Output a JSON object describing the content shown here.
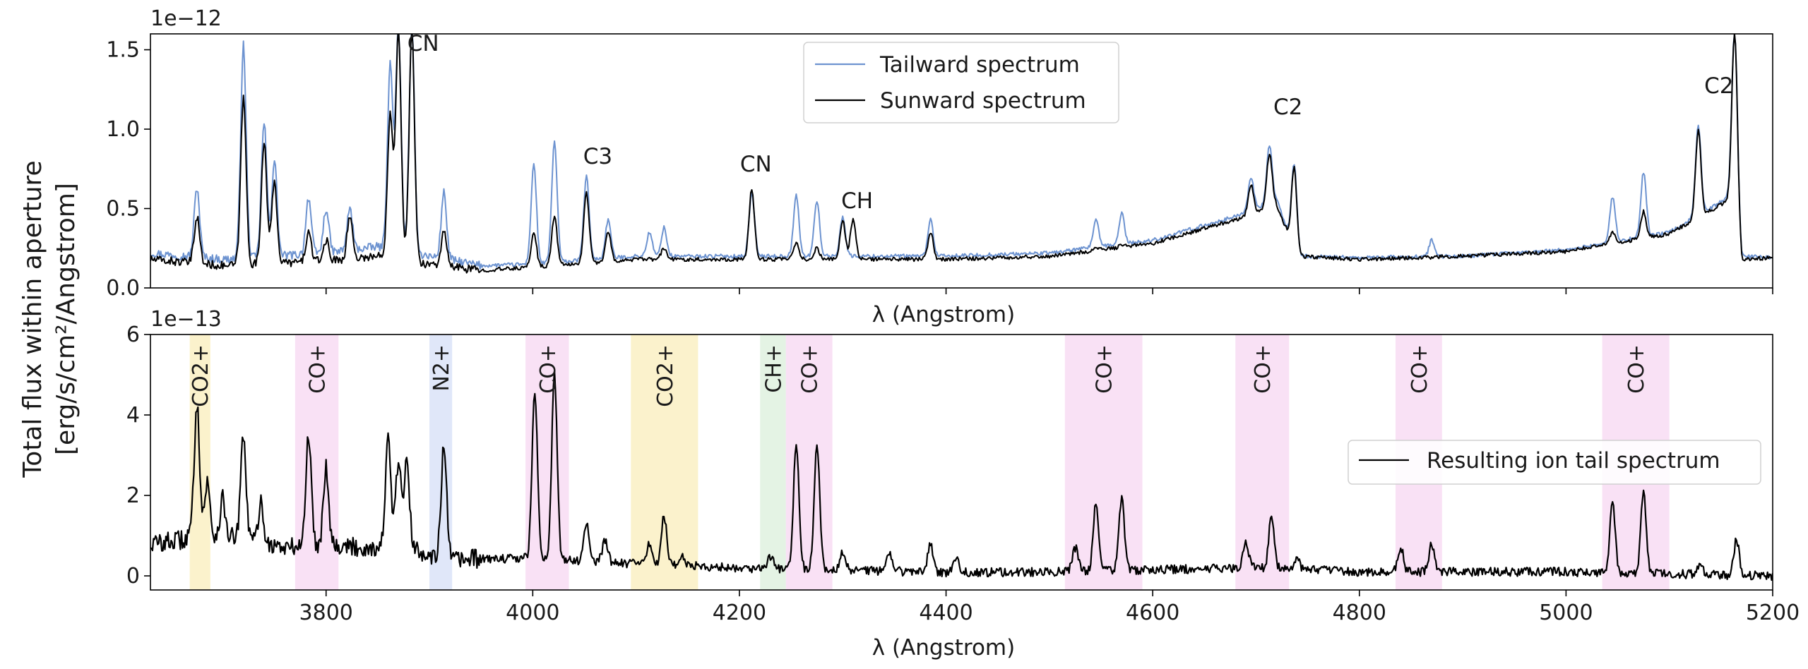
{
  "figure": {
    "ylabel_line1": "Total flux within aperture",
    "ylabel_line2": "[erg/s/cm²/Angstrom]"
  },
  "chart_data": [
    {
      "type": "line",
      "panel": "top",
      "offset_text": "1e−12",
      "xlabel": "λ (Angstrom)",
      "xlim": [
        3630,
        5200
      ],
      "ylim": [
        0,
        1.6
      ],
      "yticks": [
        0.0,
        0.5,
        1.0,
        1.5
      ],
      "ytick_labels": [
        "0.0",
        "0.5",
        "1.0",
        "1.5"
      ],
      "xticks": [
        3800,
        4000,
        4200,
        4400,
        4600,
        4800,
        5000,
        5200
      ],
      "xtick_labels": [],
      "grid": false,
      "legend_position": "upper-center",
      "series": [
        {
          "name": "Tailward spectrum",
          "color": "#6d93d0",
          "baseline": [
            [
              3630,
              0.22
            ],
            [
              3700,
              0.18
            ],
            [
              3800,
              0.22
            ],
            [
              3850,
              0.26
            ],
            [
              3900,
              0.2
            ],
            [
              3950,
              0.14
            ],
            [
              4000,
              0.15
            ],
            [
              4100,
              0.2
            ],
            [
              4200,
              0.2
            ],
            [
              4300,
              0.2
            ],
            [
              4400,
              0.2
            ],
            [
              4500,
              0.22
            ],
            [
              4600,
              0.3
            ],
            [
              4680,
              0.45
            ],
            [
              4720,
              0.55
            ],
            [
              4740,
              0.2
            ],
            [
              4800,
              0.19
            ],
            [
              4900,
              0.2
            ],
            [
              5000,
              0.24
            ],
            [
              5100,
              0.35
            ],
            [
              5165,
              0.6
            ],
            [
              5170,
              0.2
            ],
            [
              5200,
              0.19
            ]
          ],
          "peaks": [
            [
              3675,
              0.63
            ],
            [
              3720,
              1.53
            ],
            [
              3740,
              1.04
            ],
            [
              3750,
              0.8
            ],
            [
              3783,
              0.57
            ],
            [
              3800,
              0.5
            ],
            [
              3823,
              0.5
            ],
            [
              3862,
              1.4
            ],
            [
              3870,
              1.62
            ],
            [
              3883,
              1.62
            ],
            [
              3914,
              0.6
            ],
            [
              4001,
              0.78
            ],
            [
              4021,
              0.92
            ],
            [
              4052,
              0.7
            ],
            [
              4073,
              0.43
            ],
            [
              4113,
              0.35
            ],
            [
              4127,
              0.38
            ],
            [
              4212,
              0.6
            ],
            [
              4255,
              0.58
            ],
            [
              4275,
              0.55
            ],
            [
              4300,
              0.45
            ],
            [
              4385,
              0.43
            ],
            [
              4545,
              0.43
            ],
            [
              4570,
              0.47
            ],
            [
              4695,
              0.7
            ],
            [
              4713,
              0.9
            ],
            [
              4737,
              0.78
            ],
            [
              4870,
              0.3
            ],
            [
              5045,
              0.57
            ],
            [
              5075,
              0.73
            ],
            [
              5128,
              1.03
            ],
            [
              5163,
              1.6
            ]
          ],
          "note": "upper panel flux in units of 1e-12"
        },
        {
          "name": "Sunward spectrum",
          "color": "#000000",
          "baseline": [
            [
              3630,
              0.18
            ],
            [
              3700,
              0.14
            ],
            [
              3800,
              0.17
            ],
            [
              3850,
              0.2
            ],
            [
              3900,
              0.15
            ],
            [
              3950,
              0.11
            ],
            [
              4000,
              0.13
            ],
            [
              4100,
              0.18
            ],
            [
              4200,
              0.18
            ],
            [
              4300,
              0.18
            ],
            [
              4400,
              0.18
            ],
            [
              4500,
              0.2
            ],
            [
              4600,
              0.28
            ],
            [
              4680,
              0.43
            ],
            [
              4720,
              0.52
            ],
            [
              4740,
              0.2
            ],
            [
              4800,
              0.18
            ],
            [
              4900,
              0.2
            ],
            [
              5000,
              0.23
            ],
            [
              5100,
              0.34
            ],
            [
              5165,
              0.58
            ],
            [
              5170,
              0.18
            ],
            [
              5200,
              0.19
            ]
          ],
          "peaks": [
            [
              3675,
              0.45
            ],
            [
              3720,
              1.2
            ],
            [
              3740,
              0.93
            ],
            [
              3750,
              0.66
            ],
            [
              3783,
              0.35
            ],
            [
              3800,
              0.3
            ],
            [
              3823,
              0.45
            ],
            [
              3862,
              1.1
            ],
            [
              3870,
              1.62
            ],
            [
              3883,
              1.62
            ],
            [
              3914,
              0.35
            ],
            [
              4001,
              0.35
            ],
            [
              4021,
              0.45
            ],
            [
              4052,
              0.6
            ],
            [
              4073,
              0.35
            ],
            [
              4127,
              0.25
            ],
            [
              4212,
              0.62
            ],
            [
              4255,
              0.28
            ],
            [
              4275,
              0.25
            ],
            [
              4300,
              0.42
            ],
            [
              4310,
              0.43
            ],
            [
              4385,
              0.35
            ],
            [
              4545,
              0.25
            ],
            [
              4570,
              0.27
            ],
            [
              4695,
              0.65
            ],
            [
              4713,
              0.85
            ],
            [
              4737,
              0.76
            ],
            [
              5045,
              0.35
            ],
            [
              5075,
              0.48
            ],
            [
              5128,
              1.0
            ],
            [
              5163,
              1.6
            ]
          ]
        }
      ],
      "annotations": [
        {
          "text": "CN",
          "x": 3883
        },
        {
          "text": "C3",
          "x": 4052
        },
        {
          "text": "CN",
          "x": 4205
        },
        {
          "text": "CH",
          "x": 4303
        },
        {
          "text": "C2",
          "x": 4720
        },
        {
          "text": "C2",
          "x": 5137
        }
      ]
    },
    {
      "type": "line",
      "panel": "bottom",
      "offset_text": "1e−13",
      "xlabel": "λ (Angstrom)",
      "xlim": [
        3630,
        5200
      ],
      "ylim": [
        -0.35,
        6
      ],
      "yticks": [
        0,
        2,
        4,
        6
      ],
      "ytick_labels": [
        "0",
        "2",
        "4",
        "6"
      ],
      "xticks": [
        3800,
        4000,
        4200,
        4400,
        4600,
        4800,
        5000,
        5200
      ],
      "xtick_labels": [
        "3800",
        "4000",
        "4200",
        "4400",
        "4600",
        "4800",
        "5000",
        "5200"
      ],
      "grid": false,
      "legend_position": "center-right",
      "series": [
        {
          "name": "Resulting ion tail spectrum",
          "color": "#000000",
          "baseline": [
            [
              3630,
              0.8
            ],
            [
              3700,
              1.0
            ],
            [
              3760,
              0.7
            ],
            [
              3800,
              0.8
            ],
            [
              3830,
              0.7
            ],
            [
              3880,
              0.7
            ],
            [
              3920,
              0.4
            ],
            [
              4000,
              0.45
            ],
            [
              4100,
              0.3
            ],
            [
              4200,
              0.2
            ],
            [
              4300,
              0.15
            ],
            [
              4400,
              0.08
            ],
            [
              4500,
              0.1
            ],
            [
              4600,
              0.15
            ],
            [
              4700,
              0.2
            ],
            [
              4800,
              0.1
            ],
            [
              4900,
              0.1
            ],
            [
              5000,
              0.1
            ],
            [
              5100,
              0.05
            ],
            [
              5200,
              0.0
            ]
          ],
          "peaks": [
            [
              3668,
              1.0
            ],
            [
              3675,
              4.3
            ],
            [
              3685,
              2.3
            ],
            [
              3700,
              1.9
            ],
            [
              3720,
              3.4
            ],
            [
              3737,
              1.8
            ],
            [
              3783,
              3.5
            ],
            [
              3800,
              2.7
            ],
            [
              3860,
              3.4
            ],
            [
              3870,
              2.8
            ],
            [
              3878,
              2.8
            ],
            [
              3914,
              3.2
            ],
            [
              4002,
              4.6
            ],
            [
              4021,
              5.0
            ],
            [
              4052,
              1.3
            ],
            [
              4070,
              0.9
            ],
            [
              4113,
              0.8
            ],
            [
              4127,
              1.5
            ],
            [
              4145,
              0.5
            ],
            [
              4230,
              0.5
            ],
            [
              4255,
              3.3
            ],
            [
              4275,
              3.3
            ],
            [
              4300,
              0.6
            ],
            [
              4345,
              0.6
            ],
            [
              4385,
              0.8
            ],
            [
              4410,
              0.5
            ],
            [
              4525,
              0.7
            ],
            [
              4545,
              1.8
            ],
            [
              4570,
              1.9
            ],
            [
              4690,
              0.9
            ],
            [
              4715,
              1.5
            ],
            [
              4740,
              0.4
            ],
            [
              4840,
              0.7
            ],
            [
              4870,
              0.8
            ],
            [
              5045,
              1.8
            ],
            [
              5075,
              2.1
            ],
            [
              5130,
              0.3
            ],
            [
              5165,
              0.9
            ]
          ]
        }
      ],
      "bands": [
        {
          "label": "CO2+",
          "range": [
            3668,
            3688
          ],
          "color": "#fbf1c7"
        },
        {
          "label": "CO+",
          "range": [
            3770,
            3812
          ],
          "color": "#f8def4"
        },
        {
          "label": "N2+",
          "range": [
            3900,
            3922
          ],
          "color": "#dde4f8"
        },
        {
          "label": "CO+",
          "range": [
            3993,
            4035
          ],
          "color": "#f8def4"
        },
        {
          "label": "CO2+",
          "range": [
            4095,
            4160
          ],
          "color": "#fbf1c7"
        },
        {
          "label": "CH+",
          "range": [
            4220,
            4245
          ],
          "color": "#e1f2e1"
        },
        {
          "label": "CO+",
          "range": [
            4245,
            4290
          ],
          "color": "#f8def4"
        },
        {
          "label": "CO+",
          "range": [
            4515,
            4590
          ],
          "color": "#f8def4"
        },
        {
          "label": "CO+",
          "range": [
            4680,
            4732
          ],
          "color": "#f8def4"
        },
        {
          "label": "CO+",
          "range": [
            4835,
            4880
          ],
          "color": "#f8def4"
        },
        {
          "label": "CO+",
          "range": [
            5035,
            5100
          ],
          "color": "#f8def4"
        }
      ]
    }
  ]
}
